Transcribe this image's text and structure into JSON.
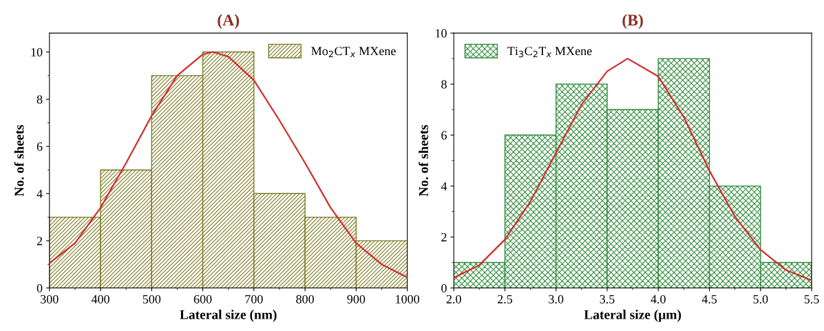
{
  "chart_data": [
    {
      "type": "histogram",
      "title": "(A)",
      "xlabel": "Lateral size (nm)",
      "ylabel": "No. of sheets",
      "bins": [
        300,
        400,
        500,
        600,
        700,
        800,
        900,
        1000
      ],
      "xlim": [
        300,
        1000
      ],
      "xticks": [
        300,
        400,
        500,
        600,
        700,
        800,
        900,
        1000
      ],
      "ylim": [
        0,
        10.8
      ],
      "yticks": [
        0,
        2,
        4,
        6,
        8,
        10
      ],
      "legend": "top right",
      "grid": false,
      "series": [
        {
          "name": "Mo$_{2}$CT$_{x}$ MXene",
          "color": "#7a7a20",
          "values": [
            3,
            5,
            9,
            10,
            4,
            3,
            2
          ]
        },
        {
          "type": "line",
          "color": "#d42a2a",
          "x": [
            300,
            350,
            400,
            450,
            500,
            550,
            600,
            620,
            650,
            700,
            750,
            800,
            850,
            900,
            950,
            1000
          ],
          "values": [
            1.05,
            1.9,
            3.4,
            5.3,
            7.3,
            9.0,
            9.9,
            10.0,
            9.8,
            8.8,
            7.1,
            5.3,
            3.4,
            1.9,
            1.0,
            0.45
          ]
        }
      ]
    },
    {
      "type": "histogram",
      "title": "(B)",
      "xlabel": "Lateral size (μm)",
      "ylabel": "No. of sheets",
      "bins": [
        2.0,
        2.5,
        3.0,
        3.5,
        4.0,
        4.5,
        5.0,
        5.5
      ],
      "xlim": [
        2.0,
        5.5
      ],
      "xticks": [
        {
          "value": 2.0,
          "label": "2.0"
        },
        2.5,
        {
          "value": 3.0,
          "label": "3.0"
        },
        3.5,
        {
          "value": 4.0,
          "label": "4.0"
        },
        4.5,
        {
          "value": 5.0,
          "label": "5.0"
        },
        5.5
      ],
      "ylim": [
        0,
        10
      ],
      "yticks": [
        0,
        2,
        4,
        6,
        8,
        10
      ],
      "legend": "top left",
      "grid": false,
      "series": [
        {
          "name": "Ti$_{3}$C$_{2}$T$_{x}$ MXene",
          "color": "#2e8b3a",
          "values": [
            1,
            6,
            8,
            7,
            9,
            4,
            1
          ]
        },
        {
          "type": "line",
          "color": "#d42a2a",
          "x": [
            2.0,
            2.25,
            2.5,
            2.75,
            3.0,
            3.25,
            3.5,
            3.7,
            4.0,
            4.25,
            4.5,
            4.75,
            5.0,
            5.25,
            5.5
          ],
          "values": [
            0.4,
            0.9,
            1.9,
            3.4,
            5.3,
            7.2,
            8.5,
            9.0,
            8.3,
            6.7,
            4.6,
            2.8,
            1.5,
            0.7,
            0.3
          ]
        }
      ]
    }
  ]
}
